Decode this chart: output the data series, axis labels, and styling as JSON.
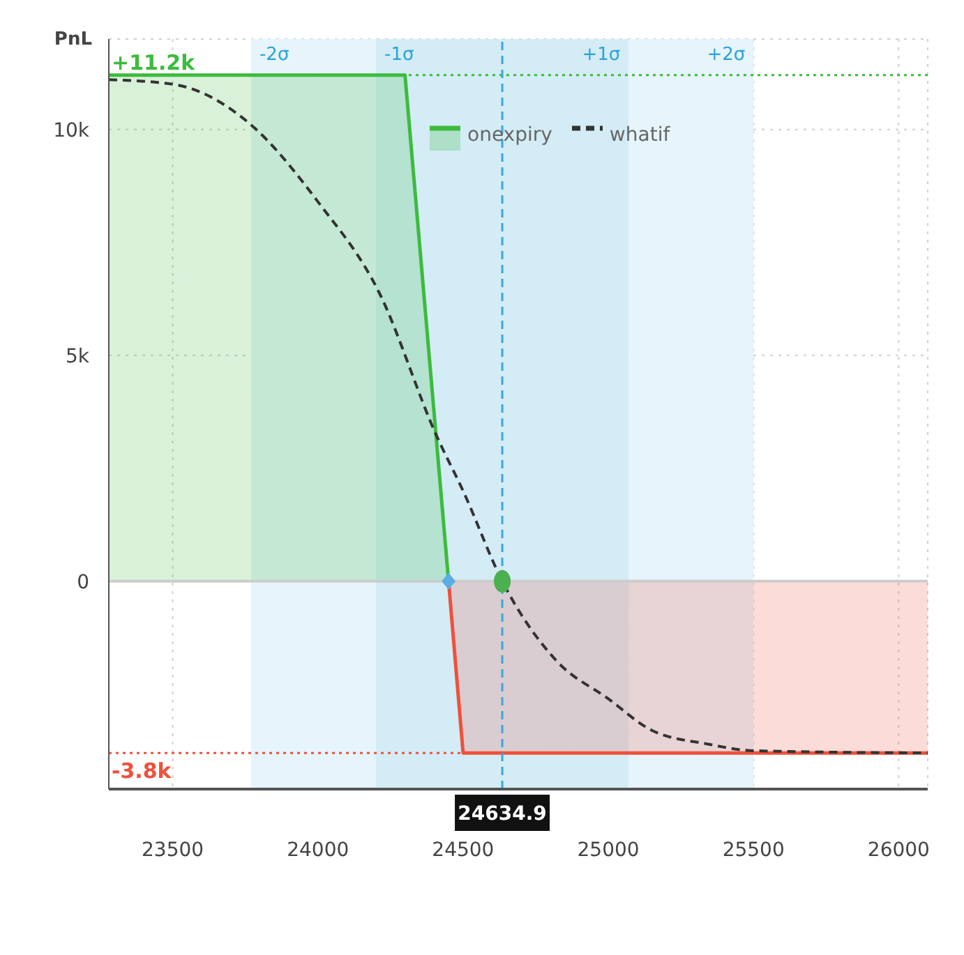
{
  "chart_data": {
    "type": "line",
    "ylabel": "PnL",
    "xlim": [
      23280,
      26100
    ],
    "ylim": [
      -4600,
      12000
    ],
    "xticks": [
      23500,
      24000,
      24500,
      25000,
      25500,
      26000
    ],
    "yticks": [
      0,
      {
        "value": 5000,
        "label": "5k"
      },
      {
        "value": 10000,
        "label": "10k"
      }
    ],
    "grid": true,
    "legend": "top",
    "series": [
      {
        "name": "onexpiry",
        "type": "area",
        "color": "#3dbb3d",
        "colors": [
          "#3dbb3d",
          "#3dbb3d",
          "#3dbb3d",
          "#f0503c",
          "#f0503c"
        ],
        "x": [
          23280,
          24300,
          24450,
          24500,
          26100
        ],
        "values": [
          11200,
          11200,
          0,
          -3800,
          -3800
        ]
      },
      {
        "name": "whatif",
        "color": "#333333",
        "line_style": "dashed",
        "x": [
          23280,
          23500,
          23770,
          24000,
          24210,
          24410,
          24500,
          24635,
          24820,
          25000,
          25150,
          25340,
          25500,
          26100
        ],
        "values": [
          11100,
          11000,
          10100,
          8400,
          6400,
          3200,
          2000,
          0,
          -1750,
          -2600,
          -3300,
          -3600,
          -3750,
          -3800
        ]
      },
      {
        "type": "scatter",
        "marker": "circle",
        "color": "#4caf50",
        "x": [
          24634.9
        ],
        "values": [
          0
        ]
      },
      {
        "type": "scatter",
        "marker": "diamond",
        "color": "#5aaee0",
        "x": [
          24450
        ],
        "values": [
          0
        ]
      }
    ],
    "bands": [
      {
        "axis": "x",
        "from": 23770,
        "to": 24200,
        "color": "#e6f4fb",
        "label": "-2σ"
      },
      {
        "axis": "x",
        "from": 24200,
        "to": 24634.9,
        "color": "#d3ecf6",
        "label": "-1σ"
      },
      {
        "axis": "x",
        "from": 24634.9,
        "to": 25070,
        "color": "#d3ecf6",
        "label": "+1σ"
      },
      {
        "axis": "x",
        "from": 25070,
        "to": 25500,
        "color": "#e6f4fb",
        "label": "+2σ"
      }
    ],
    "ref_lines": [
      {
        "axis": "y",
        "value": 11200,
        "label": "+11.2k",
        "color": "#3dbb3d",
        "line_style": "dotted"
      },
      {
        "axis": "y",
        "value": -3800,
        "label": "-3.8k",
        "color": "#f0503c",
        "line_style": "dotted"
      },
      {
        "axis": "y",
        "value": 0,
        "color": "#cccccc",
        "line_style": "solid"
      },
      {
        "axis": "x",
        "value": 24634.9,
        "label": "24634.9",
        "color": "#3aa8d8",
        "line_style": "dashed"
      }
    ]
  }
}
